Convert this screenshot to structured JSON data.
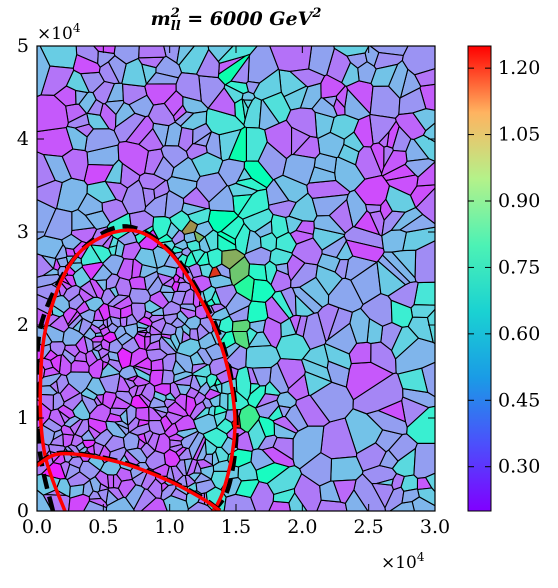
{
  "chart_data": {
    "type": "heatmap",
    "title": {
      "m": "m",
      "sup": "2",
      "sub": "ll",
      "rest": " = 6000 GeV",
      "unit_sup": "2"
    },
    "x_multiplier": {
      "base": "×10",
      "exp": "4"
    },
    "y_multiplier": {
      "base": "×10",
      "exp": "4"
    },
    "xlim": [
      0,
      30000
    ],
    "ylim": [
      0,
      50000
    ],
    "x_ticks": [
      "0.0",
      "0.5",
      "1.0",
      "1.5",
      "2.0",
      "2.5",
      "3.0"
    ],
    "x_tick_values": [
      0,
      5000,
      10000,
      15000,
      20000,
      25000,
      30000
    ],
    "y_ticks": [
      "0",
      "1",
      "2",
      "3",
      "4",
      "5"
    ],
    "y_tick_values": [
      0,
      10000,
      20000,
      30000,
      40000,
      50000
    ],
    "colorbar": {
      "colormap": "rainbow",
      "range": [
        0.2,
        1.25
      ],
      "ticks": [
        "0.30",
        "0.45",
        "0.60",
        "0.75",
        "0.90",
        "1.05",
        "1.20"
      ],
      "tick_values": [
        0.3,
        0.45,
        0.6,
        0.75,
        0.9,
        1.05,
        1.2
      ]
    },
    "cells": "voronoi tessellation of the plane, values mostly 0.25–0.60, higher (0.6–0.8) in a band at x≈1.3–1.8e4, a few hot cells (≈0.9–1.2) near x≈1.35–1.6e4, y≈0.9–3.1e4",
    "curves": [
      {
        "style": "dashed",
        "color": "#000000",
        "x": [
          1200,
          250,
          0,
          400,
          3000,
          6500,
          10000,
          12800,
          14300,
          15000,
          14900,
          14300,
          13300
        ],
        "y": [
          0,
          6000,
          13000,
          20500,
          27500,
          30600,
          28000,
          22000,
          16500,
          10500,
          6000,
          2000,
          0
        ]
      },
      {
        "style": "solid",
        "color": "#ff0000",
        "x": [
          2100,
          600,
          250,
          800,
          3000,
          6800,
          10000,
          12700,
          14200,
          14900,
          14700,
          14000,
          13300
        ],
        "y": [
          0,
          6000,
          13000,
          20500,
          27500,
          30200,
          27800,
          21800,
          16300,
          10500,
          6000,
          2000,
          0
        ]
      },
      {
        "style": "dashed",
        "color": "#000000",
        "x": [
          0,
          1500,
          4000,
          7000,
          10000,
          12500,
          13800
        ],
        "y": [
          5000,
          6200,
          6000,
          5000,
          3300,
          1400,
          0
        ]
      },
      {
        "style": "solid",
        "color": "#ff0000",
        "x": [
          0,
          1500,
          4000,
          7000,
          10000,
          12500,
          13800
        ],
        "y": [
          4900,
          6100,
          5900,
          4900,
          3200,
          1300,
          0
        ]
      }
    ]
  }
}
